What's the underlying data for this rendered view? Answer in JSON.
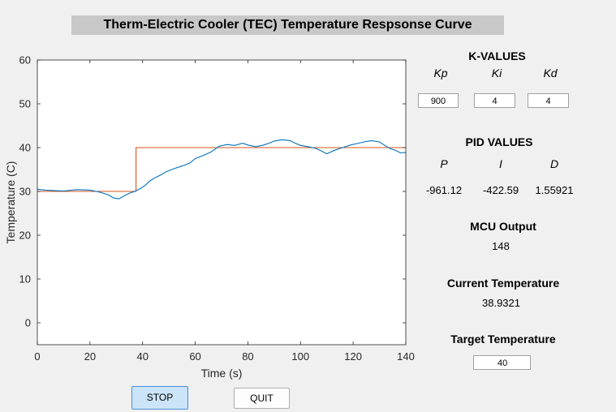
{
  "title": "Therm-Electric Cooler (TEC) Temperature Respsonse Curve",
  "chart_data": {
    "type": "line",
    "xlabel": "Time (s)",
    "ylabel": "Temperature (C)",
    "xlim": [
      0,
      140
    ],
    "ylim": [
      -5,
      60
    ],
    "xticks": [
      "0",
      "20",
      "40",
      "60",
      "80",
      "100",
      "120",
      "140"
    ],
    "yticks": [
      "0",
      "10",
      "20",
      "30",
      "40",
      "50",
      "60"
    ],
    "series": [
      {
        "color": "#d95319",
        "x": [
          0,
          37.5,
          37.5,
          140
        ],
        "values": [
          30,
          30,
          40,
          40
        ]
      },
      {
        "color": "#0072bd",
        "x": [
          0,
          3,
          6,
          10,
          15,
          20,
          24,
          27,
          29,
          31,
          33,
          35,
          37,
          39,
          41,
          43,
          45,
          47,
          49,
          52,
          55,
          58,
          60,
          63,
          66,
          69,
          72,
          75,
          78,
          80,
          83,
          86,
          88,
          90,
          93,
          96,
          98,
          100,
          103,
          106,
          108,
          110,
          113,
          116,
          119,
          122,
          125,
          127,
          130,
          132,
          134,
          136,
          138,
          140
        ],
        "values": [
          30.5,
          30.3,
          30.2,
          30.1,
          30.4,
          30.3,
          29.8,
          29.2,
          28.5,
          28.3,
          29.0,
          29.6,
          30.0,
          30.6,
          31.4,
          32.5,
          33.2,
          33.8,
          34.5,
          35.2,
          35.8,
          36.5,
          37.5,
          38.2,
          39.0,
          40.3,
          40.7,
          40.5,
          41.0,
          40.6,
          40.2,
          40.6,
          41.0,
          41.5,
          41.8,
          41.6,
          41.0,
          40.5,
          40.2,
          39.8,
          39.2,
          38.6,
          39.4,
          40.0,
          40.6,
          41.0,
          41.4,
          41.6,
          41.3,
          40.5,
          39.8,
          39.4,
          38.8,
          38.9
        ]
      }
    ]
  },
  "k_values": {
    "header": "K-VALUES",
    "kp_label": "Kp",
    "ki_label": "Ki",
    "kd_label": "Kd",
    "kp": "900",
    "ki": "4",
    "kd": "4"
  },
  "pid_values": {
    "header": "PID VALUES",
    "p_label": "P",
    "i_label": "I",
    "d_label": "D",
    "p": "-961.12",
    "i": "-422.59",
    "d": "1.55921"
  },
  "mcu": {
    "header": "MCU Output",
    "value": "148"
  },
  "current_temp": {
    "header": "Current Temperature",
    "value": "38.9321"
  },
  "target_temp": {
    "header": "Target Temperature",
    "value": "40"
  },
  "buttons": {
    "stop": "STOP",
    "quit": "QUIT"
  }
}
